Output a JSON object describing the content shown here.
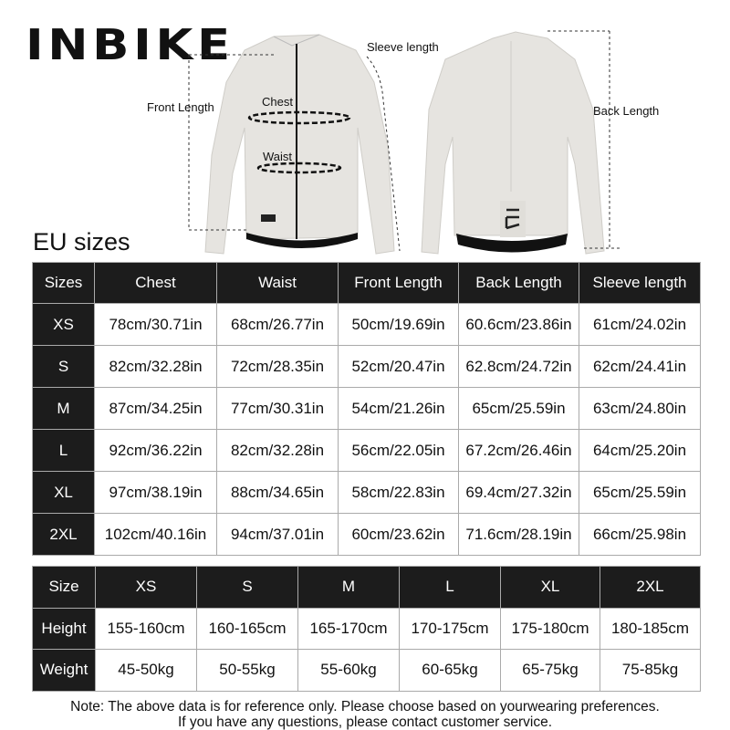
{
  "brand": {
    "logo_text": "INBIKE"
  },
  "diagram_labels": {
    "front_length": "Front Length",
    "chest": "Chest",
    "waist": "Waist",
    "sleeve_length": "Sleeve length",
    "back_length": "Back Length"
  },
  "size_chart": {
    "title": "EU sizes",
    "headers": [
      "Sizes",
      "Chest",
      "Waist",
      "Front Length",
      "Back Length",
      "Sleeve length"
    ],
    "rows": [
      [
        "XS",
        "78cm/30.71in",
        "68cm/26.77in",
        "50cm/19.69in",
        "60.6cm/23.86in",
        "61cm/24.02in"
      ],
      [
        "S",
        "82cm/32.28in",
        "72cm/28.35in",
        "52cm/20.47in",
        "62.8cm/24.72in",
        "62cm/24.41in"
      ],
      [
        "M",
        "87cm/34.25in",
        "77cm/30.31in",
        "54cm/21.26in",
        "65cm/25.59in",
        "63cm/24.80in"
      ],
      [
        "L",
        "92cm/36.22in",
        "82cm/32.28in",
        "56cm/22.05in",
        "67.2cm/26.46in",
        "64cm/25.20in"
      ],
      [
        "XL",
        "97cm/38.19in",
        "88cm/34.65in",
        "58cm/22.83in",
        "69.4cm/27.32in",
        "65cm/25.59in"
      ],
      [
        "2XL",
        "102cm/40.16in",
        "94cm/37.01in",
        "60cm/23.62in",
        "71.6cm/28.19in",
        "66cm/25.98in"
      ]
    ]
  },
  "fit_chart": {
    "headers": [
      "Size",
      "XS",
      "S",
      "M",
      "L",
      "XL",
      "2XL"
    ],
    "rows": [
      [
        "Height",
        "155-160cm",
        "160-165cm",
        "165-170cm",
        "170-175cm",
        "175-180cm",
        "180-185cm"
      ],
      [
        "Weight",
        "45-50kg",
        "50-55kg",
        "55-60kg",
        "60-65kg",
        "65-75kg",
        "75-85kg"
      ]
    ]
  },
  "note": {
    "line1": "Note: The above data is for reference only. Please choose based on yourwearing preferences.",
    "line2": "If you have any questions, please contact customer service."
  },
  "colors": {
    "header_bg": "#1c1c1c",
    "jacket": "#e6e4e0",
    "border": "#aaaaaa"
  }
}
